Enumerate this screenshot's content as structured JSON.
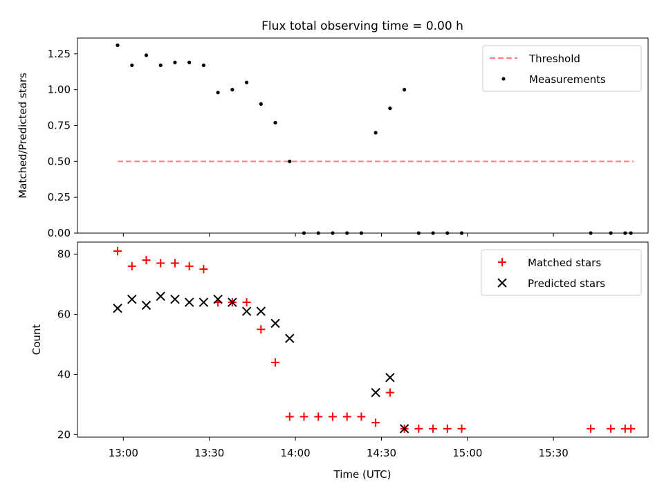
{
  "title": "Flux total observing time = 0.00 h",
  "colors": {
    "threshold": "#ff7f7f",
    "measurement": "#000000",
    "matched": "#ff0000",
    "predicted": "#000000"
  },
  "chart_data": [
    {
      "type": "scatter",
      "ylabel": "Matched/Predicted stars",
      "ylim": [
        0,
        1.36
      ],
      "yticks": [
        0,
        0.25,
        0.5,
        0.75,
        1.0,
        1.25
      ],
      "ytick_labels": [
        "0.00",
        "0.25",
        "0.50",
        "0.75",
        "1.00",
        "1.25"
      ],
      "xlim_minutes": [
        764,
        963
      ],
      "legend_position": "top-right",
      "threshold": {
        "name": "Threshold",
        "value": 0.5,
        "x_range": [
          778,
          958
        ]
      },
      "measurements": {
        "name": "Measurements",
        "x_minutes": [
          778,
          783,
          788,
          793,
          798,
          803,
          808,
          813,
          818,
          823,
          828,
          833,
          838,
          843,
          848,
          853,
          858,
          863,
          868,
          873,
          878,
          883,
          888,
          893,
          898,
          943,
          950,
          955,
          957
        ],
        "values": [
          1.31,
          1.17,
          1.24,
          1.17,
          1.19,
          1.19,
          1.17,
          0.98,
          1.0,
          1.05,
          0.9,
          0.77,
          0.5,
          0.0,
          0.0,
          0.0,
          0.0,
          0.0,
          0.7,
          0.87,
          1.0,
          0.0,
          0.0,
          0.0,
          0.0,
          0.0,
          0.0,
          0.0,
          0.0
        ]
      }
    },
    {
      "type": "scatter",
      "xlabel": "Time (UTC)",
      "ylabel": "Count",
      "ylim": [
        19.2,
        84
      ],
      "yticks": [
        20,
        40,
        60,
        80
      ],
      "ytick_labels": [
        "20",
        "40",
        "60",
        "80"
      ],
      "xlim_minutes": [
        764,
        963
      ],
      "xticks_minutes": [
        780,
        810,
        840,
        870,
        900,
        930
      ],
      "xtick_labels": [
        "13:00",
        "13:30",
        "14:00",
        "14:30",
        "15:00",
        "15:30"
      ],
      "legend_position": "top-right",
      "series": [
        {
          "name": "Matched stars",
          "marker": "plus",
          "x_minutes": [
            778,
            783,
            788,
            793,
            798,
            803,
            808,
            813,
            818,
            823,
            828,
            833,
            838,
            843,
            848,
            853,
            858,
            863,
            868,
            873,
            878,
            883,
            888,
            893,
            898,
            943,
            950,
            955,
            957
          ],
          "values": [
            81,
            76,
            78,
            77,
            77,
            76,
            75,
            64,
            64,
            64,
            55,
            44,
            26,
            26,
            26,
            26,
            26,
            26,
            24,
            34,
            22,
            22,
            22,
            22,
            22,
            22,
            22,
            22,
            22
          ]
        },
        {
          "name": "Predicted stars",
          "marker": "x",
          "x_minutes": [
            778,
            783,
            788,
            793,
            798,
            803,
            808,
            813,
            818,
            823,
            828,
            833,
            838,
            868,
            873,
            878
          ],
          "values": [
            62,
            65,
            63,
            66,
            65,
            64,
            64,
            65,
            64,
            61,
            61,
            57,
            52,
            34,
            39,
            22
          ]
        }
      ]
    }
  ]
}
